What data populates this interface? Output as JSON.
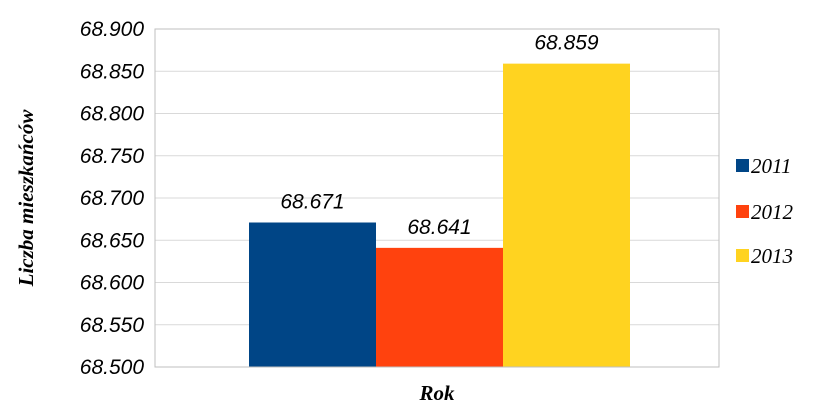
{
  "chart_data": {
    "type": "bar",
    "categories": [
      ""
    ],
    "series": [
      {
        "name": "2011",
        "values": [
          68.671
        ],
        "label": "68.671",
        "color": "#004586"
      },
      {
        "name": "2012",
        "values": [
          68.641
        ],
        "label": "68.641",
        "color": "#ff420e"
      },
      {
        "name": "2013",
        "values": [
          68.859
        ],
        "label": "68.859",
        "color": "#ffd320"
      }
    ],
    "ylim": [
      68.5,
      68.9
    ],
    "yticks": [
      68.5,
      68.55,
      68.6,
      68.65,
      68.7,
      68.75,
      68.8,
      68.85,
      68.9
    ],
    "ytick_labels": [
      "68.500",
      "68.550",
      "68.600",
      "68.650",
      "68.700",
      "68.750",
      "68.800",
      "68.850",
      "68.900"
    ],
    "xlabel": "Rok",
    "ylabel": "Liczba mieszkańców",
    "grid": true,
    "legend_position": "right"
  }
}
